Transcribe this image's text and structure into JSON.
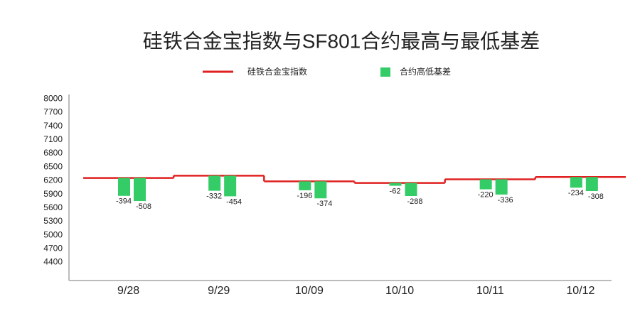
{
  "chart_data": {
    "type": "step-bar",
    "title": "硅铁合金宝指数与SF801合约最高与最低基差",
    "categories": [
      "9/28",
      "9/29",
      "10/09",
      "10/10",
      "10/11",
      "10/12"
    ],
    "series": [
      {
        "name": "硅铁合金宝指数",
        "color": "#e02020",
        "values": [
          6260,
          6310,
          6185,
          6150,
          6230,
          6280
        ]
      },
      {
        "name": "合约高低基差",
        "color": "#33cc66",
        "values": [
          [
            -394,
            -508
          ],
          [
            -332,
            -454
          ],
          [
            -196,
            -374
          ],
          [
            -62,
            -288
          ],
          [
            -220,
            -336
          ],
          [
            -234,
            -308
          ]
        ]
      }
    ],
    "ylim": [
      4000,
      8100
    ],
    "yticks": [
      4400,
      4700,
      5000,
      5300,
      5600,
      5900,
      6200,
      6500,
      6800,
      7100,
      7400,
      7700,
      8000
    ]
  }
}
